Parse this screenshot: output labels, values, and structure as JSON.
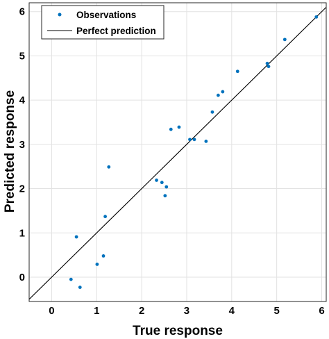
{
  "chart_data": {
    "type": "scatter",
    "xlabel": "True response",
    "ylabel": "Predicted response",
    "xlim": [
      -0.5,
      6.1
    ],
    "ylim": [
      -0.55,
      6.2
    ],
    "xticks": [
      0,
      1,
      2,
      3,
      4,
      5,
      6
    ],
    "yticks": [
      0,
      1,
      2,
      3,
      4,
      5,
      6
    ],
    "grid": true,
    "legend": {
      "placement": "top-left",
      "entries": [
        "Observations",
        "Perfect prediction"
      ]
    },
    "series": [
      {
        "name": "Observations",
        "marker": "dot",
        "color": "#0072BD",
        "x": [
          0.43,
          0.55,
          0.63,
          1.01,
          1.15,
          1.19,
          1.27,
          2.33,
          2.45,
          2.52,
          2.55,
          2.65,
          2.83,
          3.07,
          3.17,
          3.43,
          3.57,
          3.7,
          3.8,
          4.13,
          4.79,
          4.82,
          5.18,
          5.88
        ],
        "y": [
          -0.05,
          0.91,
          -0.23,
          0.29,
          0.48,
          1.37,
          2.49,
          2.19,
          2.14,
          1.84,
          2.04,
          3.34,
          3.39,
          3.11,
          3.11,
          3.07,
          3.73,
          4.11,
          4.19,
          4.65,
          4.83,
          4.76,
          5.37,
          5.88
        ]
      },
      {
        "name": "Perfect prediction",
        "kind": "line",
        "color": "#000000",
        "x": [
          -0.5,
          6.1
        ],
        "y": [
          -0.5,
          6.1
        ]
      }
    ]
  }
}
